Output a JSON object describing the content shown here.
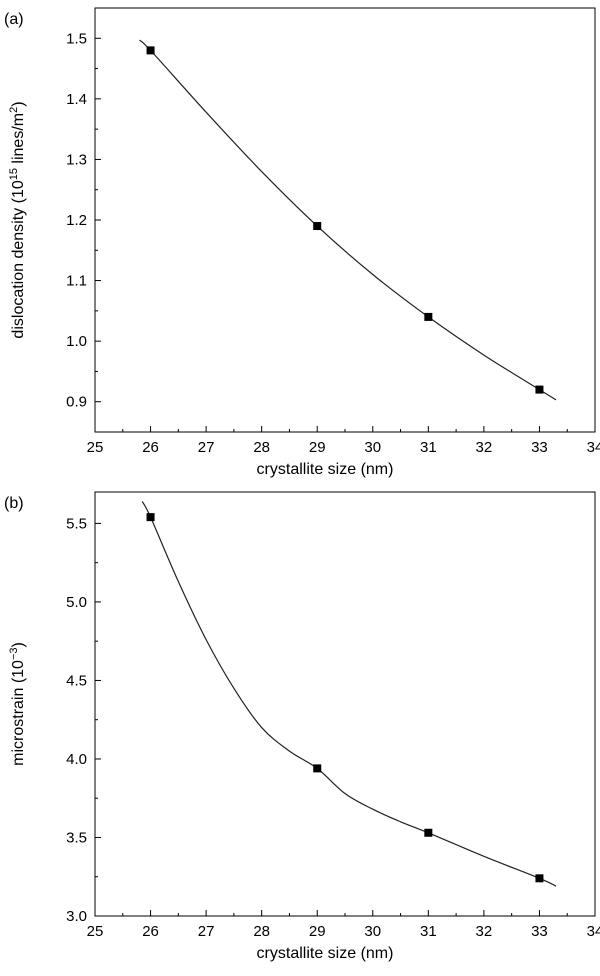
{
  "chart_data": [
    {
      "panel_label": "(a)",
      "type": "line",
      "xlabel": "crystallite size (nm)",
      "ylabel_main": "dislocation density (10",
      "ylabel_sup1": "15",
      "ylabel_mid": " lines/m",
      "ylabel_sup2": "2",
      "ylabel_end": ")",
      "xlim": [
        25,
        34
      ],
      "ylim": [
        0.85,
        1.55
      ],
      "xticks": [
        25,
        26,
        27,
        28,
        29,
        30,
        31,
        32,
        33,
        34
      ],
      "xtick_labels": [
        "25",
        "26",
        "27",
        "28",
        "29",
        "30",
        "31",
        "32",
        "33",
        "34"
      ],
      "yticks": [
        0.9,
        1.0,
        1.1,
        1.2,
        1.3,
        1.4,
        1.5
      ],
      "ytick_labels": [
        "0.9",
        "1.0",
        "1.1",
        "1.2",
        "1.3",
        "1.4",
        "1.5"
      ],
      "x": [
        26,
        29,
        31,
        33
      ],
      "y": [
        1.48,
        1.19,
        1.04,
        0.92
      ],
      "fit_x": [
        25.8,
        26,
        27,
        28,
        29,
        30,
        31,
        32,
        33,
        33.3
      ],
      "fit_y": [
        1.497,
        1.48,
        1.378,
        1.28,
        1.19,
        1.11,
        1.04,
        0.977,
        0.92,
        0.903
      ],
      "grid": false
    },
    {
      "panel_label": "(b)",
      "type": "line",
      "xlabel": "crystallite size (nm)",
      "ylabel_main": "microstrain (10",
      "ylabel_sup1": "−3",
      "ylabel_mid": ")",
      "ylabel_sup2": "",
      "ylabel_end": "",
      "xlim": [
        25,
        34
      ],
      "ylim": [
        3.0,
        5.7
      ],
      "xticks": [
        25,
        26,
        27,
        28,
        29,
        30,
        31,
        32,
        33,
        34
      ],
      "xtick_labels": [
        "25",
        "26",
        "27",
        "28",
        "29",
        "30",
        "31",
        "32",
        "33",
        "34"
      ],
      "yticks": [
        3.0,
        3.5,
        4.0,
        4.5,
        5.0,
        5.5
      ],
      "ytick_labels": [
        "3.0",
        "3.5",
        "4.0",
        "4.5",
        "5.0",
        "5.5"
      ],
      "x": [
        26,
        29,
        31,
        33
      ],
      "y": [
        5.54,
        3.94,
        3.53,
        3.24
      ],
      "fit_x": [
        25.85,
        26,
        26.5,
        27,
        27.5,
        28,
        28.5,
        29,
        29.5,
        30,
        30.5,
        31,
        32,
        33,
        33.3
      ],
      "fit_y": [
        5.64,
        5.54,
        5.13,
        4.76,
        4.45,
        4.2,
        4.05,
        3.94,
        3.78,
        3.68,
        3.6,
        3.53,
        3.38,
        3.24,
        3.19
      ],
      "grid": false
    }
  ]
}
